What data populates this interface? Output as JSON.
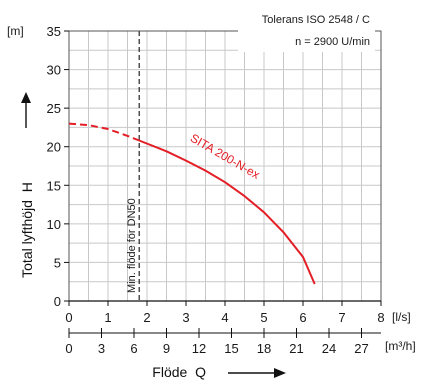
{
  "chart_data": {
    "type": "line",
    "y_unit": "[m]",
    "x_unit_primary": "[l/s]",
    "x_unit_secondary": "[m³/h]",
    "ylabel": "Total lyfthöjd  H",
    "xlabel": "Flöde  Q",
    "tolerance_text": "Tolerans ISO 2548 / C",
    "speed_text": "n = 2900 U/min",
    "xlim": [
      0,
      8
    ],
    "ylim": [
      0,
      35
    ],
    "x_ticks": [
      "0",
      "1",
      "2",
      "3",
      "4",
      "5",
      "6",
      "7",
      "8"
    ],
    "y_ticks": [
      "0",
      "5",
      "10",
      "15",
      "20",
      "25",
      "30",
      "35"
    ],
    "x2_ticks": [
      "0",
      "3",
      "6",
      "9",
      "12",
      "15",
      "18",
      "21",
      "24",
      "27"
    ],
    "grid": true,
    "color": "#e41e26",
    "min_flow": {
      "x": 1.8,
      "label": "Min. flöde för DN50"
    },
    "series": [
      {
        "name": "SITA 200-N-ex",
        "dashed_points": [
          [
            0,
            23
          ],
          [
            0.5,
            22.8
          ],
          [
            1.0,
            22.3
          ],
          [
            1.5,
            21.4
          ],
          [
            1.8,
            20.8
          ]
        ],
        "points": [
          [
            1.8,
            20.8
          ],
          [
            2.5,
            19.4
          ],
          [
            3.0,
            18.2
          ],
          [
            3.5,
            16.9
          ],
          [
            4.0,
            15.4
          ],
          [
            4.5,
            13.6
          ],
          [
            5.0,
            11.5
          ],
          [
            5.5,
            8.9
          ],
          [
            6.0,
            5.7
          ],
          [
            6.3,
            2.2
          ]
        ]
      }
    ]
  }
}
